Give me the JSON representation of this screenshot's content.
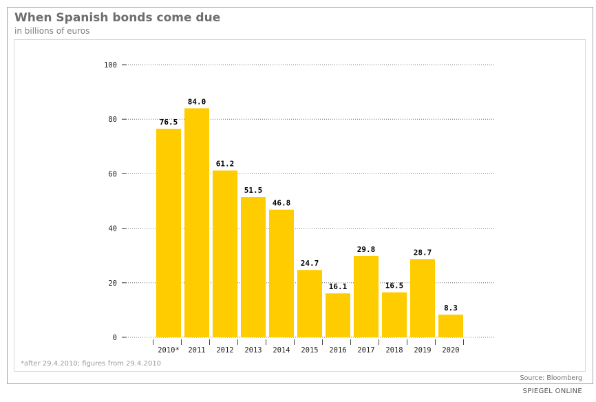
{
  "title": "When Spanish bonds come due",
  "subtitle": "in billions of euros",
  "footnote": "*after 29.4.2010; figures from 29.4.2010",
  "source": "Source: Bloomberg",
  "credit": "SPIEGEL ONLINE",
  "colors": {
    "bar": "#ffcc00",
    "grid": "#555555",
    "frame": "#a6a6a6"
  },
  "chart_data": {
    "type": "bar",
    "title": "When Spanish bonds come due",
    "subtitle": "in billions of euros",
    "xlabel": "",
    "ylabel": "",
    "categories": [
      "2010*",
      "2011",
      "2012",
      "2013",
      "2014",
      "2015",
      "2016",
      "2017",
      "2018",
      "2019",
      "2020"
    ],
    "values": [
      76.5,
      84.0,
      61.2,
      51.5,
      46.8,
      24.7,
      16.1,
      29.8,
      16.5,
      28.7,
      8.3
    ],
    "value_labels": [
      "76.5",
      "84.0",
      "61.2",
      "51.5",
      "46.8",
      "24.7",
      "16.1",
      "29.8",
      "16.5",
      "28.7",
      "8.3"
    ],
    "ylim": [
      0,
      100
    ],
    "yticks": [
      0,
      20,
      40,
      60,
      80,
      100
    ],
    "ytick_labels": [
      "0",
      "20",
      "40",
      "60",
      "80",
      "100"
    ],
    "grid": true,
    "legend": "none"
  }
}
